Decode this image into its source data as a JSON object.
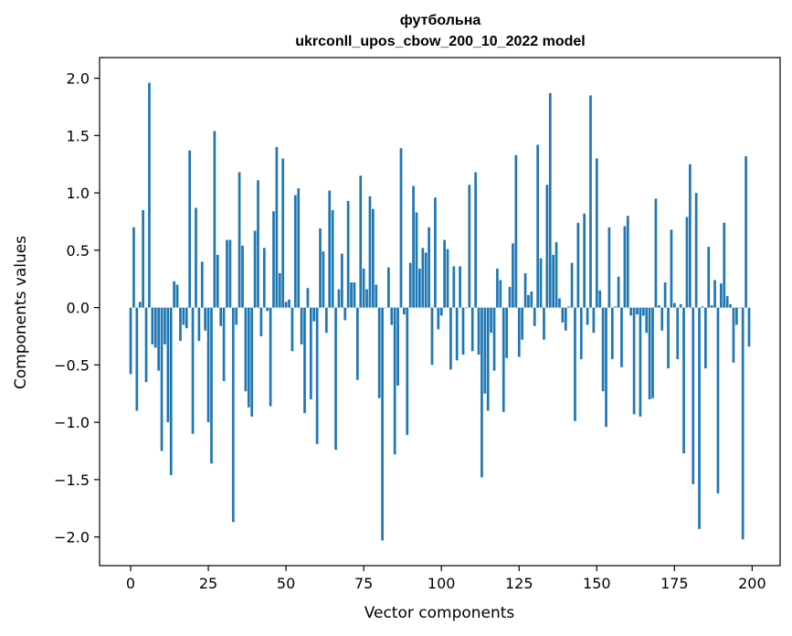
{
  "chart_data": {
    "type": "bar",
    "title": "футбольна",
    "subtitle": "ukrconll_upos_cbow_200_10_2022 model",
    "xlabel": "Vector components",
    "ylabel": "Components values",
    "xlim": [
      -10,
      209
    ],
    "ylim": [
      -2.25,
      2.18
    ],
    "xticks": [
      0,
      25,
      50,
      75,
      100,
      125,
      150,
      175,
      200
    ],
    "yticks": [
      -2.0,
      -1.5,
      -1.0,
      -0.5,
      0.0,
      0.5,
      1.0,
      1.5,
      2.0
    ],
    "ytick_labels": [
      "−2.0",
      "−1.5",
      "−1.0",
      "−0.5",
      "0.0",
      "0.5",
      "1.0",
      "1.5",
      "2.0"
    ],
    "bar_color": "#1f77b4",
    "grid": false,
    "legend": "none",
    "values": [
      -0.58,
      0.7,
      -0.9,
      0.05,
      0.85,
      -0.65,
      1.96,
      -0.32,
      -0.35,
      -0.55,
      -1.25,
      -0.32,
      -1.0,
      -1.46,
      0.23,
      0.2,
      -0.29,
      -0.15,
      -0.18,
      1.37,
      -1.1,
      0.87,
      -0.29,
      0.4,
      -0.2,
      -1.0,
      -1.36,
      1.54,
      0.46,
      -0.16,
      -0.64,
      0.59,
      0.59,
      -1.87,
      -0.15,
      1.18,
      0.54,
      -0.73,
      -0.87,
      -0.95,
      0.67,
      1.11,
      -0.25,
      0.52,
      -0.03,
      -0.86,
      0.84,
      1.4,
      0.3,
      1.3,
      0.05,
      0.07,
      -0.38,
      0.98,
      1.04,
      -0.32,
      -0.92,
      0.17,
      -0.8,
      -0.12,
      -1.19,
      0.69,
      0.49,
      -0.22,
      1.02,
      0.85,
      -1.24,
      0.16,
      0.47,
      -0.11,
      0.93,
      0.22,
      0.22,
      -0.63,
      1.15,
      0.34,
      0.16,
      0.97,
      0.86,
      0.2,
      -0.79,
      -2.03,
      0.0,
      0.35,
      -0.15,
      -1.28,
      -0.68,
      1.39,
      -0.06,
      -1.11,
      0.39,
      1.06,
      0.83,
      0.34,
      0.52,
      0.48,
      0.7,
      -0.5,
      0.96,
      -0.19,
      -0.07,
      0.59,
      0.51,
      -0.54,
      0.36,
      -0.46,
      0.36,
      -0.41,
      0.0,
      1.07,
      -0.38,
      1.18,
      -0.41,
      -1.48,
      -0.75,
      -0.9,
      -0.22,
      -0.55,
      0.34,
      0.24,
      -0.91,
      -0.44,
      0.18,
      0.56,
      1.33,
      -0.43,
      -0.28,
      0.3,
      0.11,
      0.14,
      -0.16,
      1.42,
      0.43,
      -0.28,
      1.07,
      1.87,
      0.46,
      0.57,
      0.08,
      -0.13,
      -0.2,
      0.01,
      0.39,
      -0.99,
      0.74,
      -0.45,
      0.82,
      -0.15,
      1.85,
      -0.22,
      1.3,
      0.15,
      -0.73,
      -1.04,
      0.7,
      -0.45,
      0.01,
      0.27,
      -0.52,
      0.71,
      0.8,
      -0.07,
      -0.93,
      -0.06,
      -0.95,
      -0.07,
      -0.22,
      -0.8,
      -0.79,
      0.95,
      0.02,
      -0.2,
      0.22,
      -0.53,
      0.68,
      0.04,
      -0.45,
      0.03,
      -1.27,
      0.79,
      1.25,
      -1.54,
      1.0,
      -1.93,
      0.01,
      -0.53,
      0.53,
      0.02,
      0.24,
      -1.62,
      0.21,
      0.74,
      0.1,
      0.03,
      -0.48,
      -0.15,
      0.0,
      -2.02,
      1.32,
      -0.34
    ]
  }
}
